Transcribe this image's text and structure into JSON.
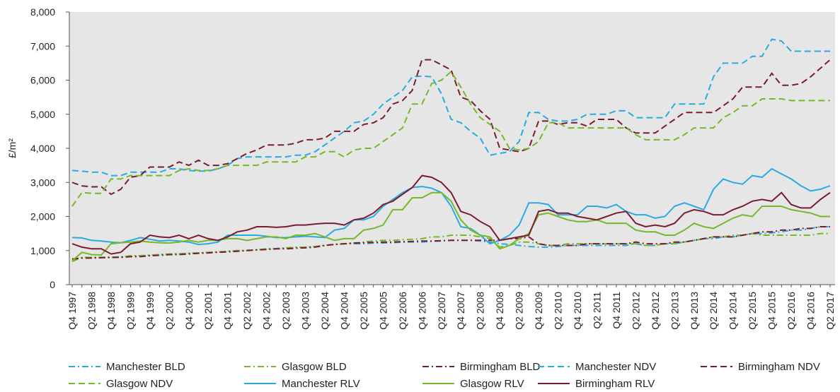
{
  "chart_data": {
    "type": "line",
    "y_label": "£/m²",
    "categories": [
      "Q4 1997",
      null,
      "Q2 1998",
      null,
      "Q4 1998",
      null,
      "Q2 1999",
      null,
      "Q4 1999",
      null,
      "Q2 2000",
      null,
      "Q4 2000",
      null,
      "Q2 2001",
      null,
      "Q4 2001",
      null,
      "Q2 2002",
      null,
      "Q4 2002",
      null,
      "Q2 2003",
      null,
      "Q4 2003",
      null,
      "Q2 2004",
      null,
      "Q4 2004",
      null,
      "Q2 2005",
      null,
      "Q4 2005",
      null,
      "Q2 2006",
      null,
      "Q4 2006",
      null,
      "Q2 2007",
      null,
      "Q4 2007",
      null,
      "Q2 2008",
      null,
      "Q4 2008",
      null,
      "Q2 2009",
      null,
      "Q4 2009",
      null,
      "Q2 2010",
      null,
      "Q4 2010",
      null,
      "Q2 2011",
      null,
      "Q4 2011",
      null,
      "Q2 2012",
      null,
      "Q4 2012",
      null,
      "Q2 2013",
      null,
      "Q4 2013",
      null,
      "Q2 2014",
      null,
      "Q4 2014",
      null,
      "Q2 2015",
      null,
      "Q4 2015",
      null,
      "Q2 2016",
      null,
      "Q4 2016",
      null,
      "Q2 2017"
    ],
    "ylim": [
      0,
      8000
    ],
    "yticks": [
      0,
      {
        "value": 1000,
        "label": "1,000"
      },
      {
        "value": 2000,
        "label": "2,000"
      },
      {
        "value": 3000,
        "label": "3,000"
      },
      {
        "value": 4000,
        "label": "4,000"
      },
      {
        "value": 5000,
        "label": "5,000"
      },
      {
        "value": 6000,
        "label": "6,000"
      },
      {
        "value": 7000,
        "label": "7,000"
      },
      {
        "value": 8000,
        "label": "8,000"
      }
    ],
    "series": [
      {
        "name": "Manchester BLD",
        "color": "#29abe2",
        "style": "dashdot",
        "values": [
          750,
          780,
          800,
          800,
          800,
          820,
          830,
          850,
          860,
          880,
          900,
          910,
          920,
          930,
          950,
          960,
          980,
          1000,
          1010,
          1020,
          1050,
          1060,
          1080,
          1080,
          1100,
          1120,
          1150,
          1180,
          1200,
          1200,
          1200,
          1220,
          1220,
          1230,
          1250,
          1250,
          1250,
          1270,
          1280,
          1300,
          1300,
          1300,
          1280,
          1250,
          1200,
          1180,
          1150,
          1120,
          1100,
          1100,
          1120,
          1150,
          1150,
          1150,
          1150,
          1150,
          1150,
          1150,
          1200,
          1150,
          1150,
          1200,
          1200,
          1250,
          1300,
          1350,
          1350,
          1400,
          1400,
          1450,
          1500,
          1500,
          1520,
          1550,
          1600,
          1600,
          1650,
          1700,
          1700
        ]
      },
      {
        "name": "Glasgow BLD",
        "color": "#76b82a",
        "style": "dashdot",
        "values": [
          680,
          800,
          800,
          800,
          800,
          800,
          850,
          850,
          870,
          880,
          900,
          900,
          920,
          930,
          950,
          960,
          980,
          1000,
          1000,
          1020,
          1050,
          1050,
          1080,
          1100,
          1100,
          1120,
          1150,
          1180,
          1200,
          1220,
          1250,
          1280,
          1300,
          1300,
          1320,
          1330,
          1350,
          1400,
          1400,
          1450,
          1450,
          1450,
          1400,
          1350,
          1100,
          1150,
          1250,
          1250,
          1200,
          1150,
          1150,
          1200,
          1200,
          1200,
          1200,
          1200,
          1200,
          1200,
          1200,
          1150,
          1150,
          1200,
          1200,
          1250,
          1300,
          1350,
          1400,
          1400,
          1450,
          1450,
          1500,
          1450,
          1450,
          1450,
          1450,
          1450,
          1450,
          1500,
          1500
        ]
      },
      {
        "name": "Birmingham BLD",
        "color": "#7b1c2e",
        "style": "dashdot",
        "values": [
          750,
          780,
          780,
          790,
          800,
          800,
          820,
          820,
          850,
          860,
          880,
          880,
          900,
          920,
          930,
          950,
          960,
          980,
          1000,
          1020,
          1030,
          1050,
          1050,
          1070,
          1080,
          1100,
          1150,
          1180,
          1200,
          1220,
          1230,
          1240,
          1250,
          1250,
          1260,
          1270,
          1280,
          1280,
          1290,
          1300,
          1300,
          1300,
          1300,
          1300,
          1300,
          1350,
          1350,
          1400,
          1200,
          1150,
          1150,
          1150,
          1150,
          1200,
          1200,
          1200,
          1200,
          1200,
          1250,
          1200,
          1200,
          1200,
          1250,
          1250,
          1300,
          1350,
          1400,
          1400,
          1400,
          1450,
          1500,
          1550,
          1550,
          1600,
          1600,
          1650,
          1650,
          1700,
          1700
        ]
      },
      {
        "name": "Manchester NDV",
        "color": "#29abe2",
        "style": "dash",
        "values": [
          3350,
          3330,
          3300,
          3300,
          3200,
          3200,
          3300,
          3300,
          3300,
          3300,
          3400,
          3400,
          3350,
          3330,
          3330,
          3400,
          3500,
          3700,
          3750,
          3750,
          3750,
          3750,
          3750,
          3800,
          3800,
          3900,
          4100,
          4300,
          4500,
          4750,
          4800,
          5000,
          5300,
          5500,
          5700,
          6100,
          6120,
          6100,
          5600,
          4850,
          4750,
          4500,
          4300,
          3800,
          3850,
          3900,
          4200,
          5050,
          5050,
          4850,
          4800,
          4800,
          4850,
          5000,
          5000,
          5000,
          5100,
          5100,
          4900,
          4900,
          4900,
          4900,
          5300,
          5300,
          5300,
          5300,
          6100,
          6500,
          6500,
          6500,
          6700,
          6700,
          7200,
          7150,
          6850,
          6850,
          6850,
          6850,
          6850
        ]
      },
      {
        "name": "Birmingham NDV",
        "color": "#7b1c2e",
        "style": "dash",
        "values": [
          3000,
          2900,
          2870,
          2870,
          2650,
          2800,
          3150,
          3200,
          3450,
          3450,
          3450,
          3600,
          3500,
          3650,
          3500,
          3500,
          3550,
          3700,
          3850,
          3950,
          4100,
          4100,
          4100,
          4150,
          4250,
          4250,
          4300,
          4500,
          4500,
          4500,
          4700,
          4750,
          4900,
          5300,
          5400,
          5700,
          6600,
          6600,
          6450,
          6300,
          5500,
          5400,
          5100,
          4850,
          4000,
          3950,
          3900,
          4000,
          4800,
          4800,
          4700,
          4750,
          4750,
          4650,
          4850,
          4850,
          4850,
          4600,
          4450,
          4450,
          4450,
          4650,
          4850,
          5050,
          5050,
          5050,
          5050,
          5250,
          5450,
          5800,
          5800,
          5800,
          6200,
          5850,
          5850,
          5900,
          6100,
          6350,
          6600
        ]
      },
      {
        "name": "Glasgow NDV",
        "color": "#76b82a",
        "style": "dash",
        "values": [
          2300,
          2700,
          2680,
          2680,
          3100,
          3100,
          3200,
          3200,
          3200,
          3200,
          3200,
          3350,
          3400,
          3350,
          3350,
          3400,
          3500,
          3500,
          3500,
          3500,
          3600,
          3600,
          3600,
          3600,
          3750,
          3750,
          3900,
          3900,
          3750,
          3950,
          4000,
          4000,
          4200,
          4400,
          4600,
          5300,
          5300,
          5900,
          6000,
          6250,
          5800,
          5300,
          4900,
          4700,
          4500,
          4000,
          3950,
          4000,
          4200,
          4750,
          4750,
          4600,
          4600,
          4600,
          4600,
          4600,
          4600,
          4600,
          4400,
          4250,
          4250,
          4250,
          4250,
          4400,
          4600,
          4600,
          4600,
          4900,
          5050,
          5250,
          5250,
          5450,
          5450,
          5450,
          5400,
          5400,
          5400,
          5400,
          5400
        ]
      },
      {
        "name": "Manchester RLV",
        "color": "#29abe2",
        "style": "solid",
        "values": [
          1380,
          1370,
          1300,
          1280,
          1250,
          1230,
          1300,
          1380,
          1330,
          1280,
          1300,
          1280,
          1250,
          1180,
          1200,
          1250,
          1450,
          1450,
          1450,
          1450,
          1420,
          1380,
          1380,
          1400,
          1420,
          1400,
          1380,
          1600,
          1650,
          1900,
          1900,
          2000,
          2300,
          2500,
          2700,
          2850,
          2880,
          2830,
          2700,
          2300,
          1700,
          1650,
          1450,
          1200,
          1300,
          1450,
          1750,
          2400,
          2400,
          2350,
          2050,
          2050,
          2050,
          2300,
          2300,
          2250,
          2350,
          2150,
          2050,
          2050,
          1950,
          2000,
          2300,
          2400,
          2300,
          2200,
          2800,
          3100,
          3000,
          2950,
          3200,
          3150,
          3400,
          3250,
          3100,
          2900,
          2750,
          2800,
          2900
        ]
      },
      {
        "name": "Glasgow RLV",
        "color": "#76b82a",
        "style": "solid",
        "values": [
          700,
          950,
          880,
          870,
          1200,
          1230,
          1250,
          1280,
          1250,
          1230,
          1220,
          1250,
          1300,
          1250,
          1300,
          1300,
          1350,
          1350,
          1300,
          1350,
          1400,
          1400,
          1350,
          1450,
          1450,
          1500,
          1400,
          1300,
          1350,
          1350,
          1600,
          1650,
          1750,
          2200,
          2200,
          2550,
          2550,
          2700,
          2700,
          2450,
          1900,
          1600,
          1450,
          1400,
          1050,
          1150,
          1350,
          1500,
          2050,
          2100,
          2000,
          1900,
          1850,
          1850,
          1900,
          1800,
          1800,
          1800,
          1600,
          1550,
          1550,
          1450,
          1450,
          1600,
          1800,
          1700,
          1650,
          1800,
          1950,
          2050,
          2000,
          2300,
          2300,
          2300,
          2200,
          2150,
          2100,
          2000,
          2000
        ]
      },
      {
        "name": "Birmingham RLV",
        "color": "#7b1c2e",
        "style": "solid",
        "values": [
          1200,
          1100,
          1050,
          1050,
          900,
          950,
          1200,
          1250,
          1450,
          1400,
          1380,
          1450,
          1350,
          1450,
          1350,
          1300,
          1400,
          1550,
          1600,
          1700,
          1700,
          1680,
          1700,
          1750,
          1750,
          1780,
          1800,
          1800,
          1750,
          1900,
          1950,
          2100,
          2350,
          2450,
          2650,
          2850,
          3200,
          3150,
          3000,
          2700,
          2150,
          2050,
          1850,
          1700,
          1300,
          1350,
          1400,
          1450,
          2150,
          2200,
          2100,
          2100,
          2000,
          1950,
          1900,
          2000,
          2100,
          2150,
          1800,
          1700,
          1750,
          1700,
          1800,
          2100,
          2200,
          2150,
          2050,
          2050,
          2200,
          2300,
          2450,
          2500,
          2450,
          2700,
          2350,
          2250,
          2250,
          2500,
          2700
        ]
      }
    ],
    "grid": false,
    "background": "#e6e6e6"
  }
}
